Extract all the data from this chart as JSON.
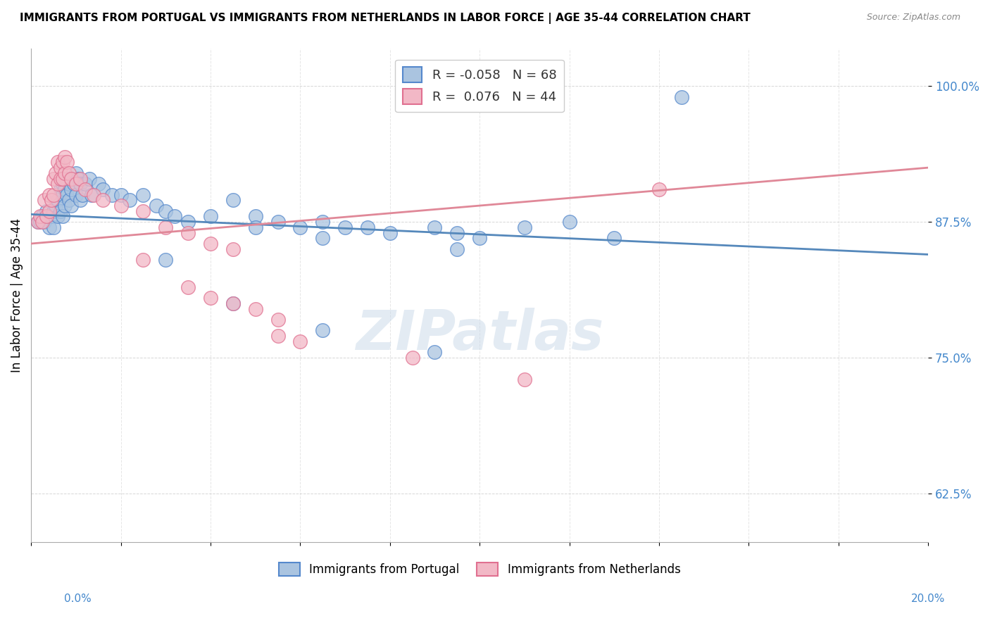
{
  "title": "IMMIGRANTS FROM PORTUGAL VS IMMIGRANTS FROM NETHERLANDS IN LABOR FORCE | AGE 35-44 CORRELATION CHART",
  "source": "Source: ZipAtlas.com",
  "ylabel": "In Labor Force | Age 35-44",
  "y_ticks": [
    62.5,
    75.0,
    87.5,
    100.0
  ],
  "y_tick_labels": [
    "62.5%",
    "75.0%",
    "87.5%",
    "100.0%"
  ],
  "xlim": [
    0.0,
    20.0
  ],
  "ylim": [
    58.0,
    103.5
  ],
  "portugal_color": "#aac4e0",
  "portugal_edge": "#5588cc",
  "netherlands_color": "#f2b8c6",
  "netherlands_edge": "#e07090",
  "portugal_line_color": "#5588bb",
  "netherlands_line_color": "#e08898",
  "legend_R_portugal": "-0.058",
  "legend_N_portugal": "68",
  "legend_R_netherlands": "0.076",
  "legend_N_netherlands": "44",
  "watermark": "ZIPatlas",
  "portugal_scatter": [
    [
      0.15,
      87.5
    ],
    [
      0.2,
      87.5
    ],
    [
      0.25,
      88.0
    ],
    [
      0.3,
      87.5
    ],
    [
      0.35,
      88.5
    ],
    [
      0.4,
      87.0
    ],
    [
      0.45,
      88.0
    ],
    [
      0.5,
      88.5
    ],
    [
      0.5,
      87.0
    ],
    [
      0.55,
      89.0
    ],
    [
      0.6,
      89.5
    ],
    [
      0.6,
      88.0
    ],
    [
      0.65,
      90.5
    ],
    [
      0.65,
      88.5
    ],
    [
      0.7,
      91.0
    ],
    [
      0.7,
      90.0
    ],
    [
      0.7,
      88.0
    ],
    [
      0.75,
      90.5
    ],
    [
      0.75,
      89.0
    ],
    [
      0.8,
      91.5
    ],
    [
      0.8,
      90.0
    ],
    [
      0.85,
      91.0
    ],
    [
      0.85,
      89.5
    ],
    [
      0.9,
      90.5
    ],
    [
      0.9,
      89.0
    ],
    [
      0.95,
      91.0
    ],
    [
      1.0,
      92.0
    ],
    [
      1.0,
      90.0
    ],
    [
      1.05,
      91.5
    ],
    [
      1.1,
      91.0
    ],
    [
      1.1,
      89.5
    ],
    [
      1.15,
      90.0
    ],
    [
      1.2,
      91.0
    ],
    [
      1.3,
      91.5
    ],
    [
      1.35,
      90.0
    ],
    [
      1.5,
      91.0
    ],
    [
      1.6,
      90.5
    ],
    [
      1.8,
      90.0
    ],
    [
      2.0,
      90.0
    ],
    [
      2.2,
      89.5
    ],
    [
      2.5,
      90.0
    ],
    [
      2.8,
      89.0
    ],
    [
      3.0,
      88.5
    ],
    [
      3.2,
      88.0
    ],
    [
      3.5,
      87.5
    ],
    [
      4.0,
      88.0
    ],
    [
      4.5,
      89.5
    ],
    [
      5.0,
      88.0
    ],
    [
      5.0,
      87.0
    ],
    [
      5.5,
      87.5
    ],
    [
      6.0,
      87.0
    ],
    [
      6.5,
      87.5
    ],
    [
      6.5,
      86.0
    ],
    [
      7.0,
      87.0
    ],
    [
      7.5,
      87.0
    ],
    [
      8.0,
      86.5
    ],
    [
      9.0,
      87.0
    ],
    [
      9.5,
      86.5
    ],
    [
      9.5,
      85.0
    ],
    [
      10.0,
      86.0
    ],
    [
      11.0,
      87.0
    ],
    [
      12.0,
      87.5
    ],
    [
      13.0,
      86.0
    ],
    [
      14.5,
      99.0
    ],
    [
      3.0,
      84.0
    ],
    [
      4.5,
      80.0
    ],
    [
      6.5,
      77.5
    ],
    [
      9.0,
      75.5
    ]
  ],
  "netherlands_scatter": [
    [
      0.15,
      87.5
    ],
    [
      0.2,
      88.0
    ],
    [
      0.25,
      87.5
    ],
    [
      0.3,
      89.5
    ],
    [
      0.35,
      88.0
    ],
    [
      0.4,
      90.0
    ],
    [
      0.4,
      88.5
    ],
    [
      0.45,
      89.5
    ],
    [
      0.5,
      91.5
    ],
    [
      0.5,
      90.0
    ],
    [
      0.55,
      92.0
    ],
    [
      0.6,
      93.0
    ],
    [
      0.6,
      91.0
    ],
    [
      0.65,
      92.5
    ],
    [
      0.65,
      91.5
    ],
    [
      0.7,
      93.0
    ],
    [
      0.7,
      91.5
    ],
    [
      0.75,
      93.5
    ],
    [
      0.75,
      92.0
    ],
    [
      0.8,
      93.0
    ],
    [
      0.85,
      92.0
    ],
    [
      0.9,
      91.5
    ],
    [
      1.0,
      91.0
    ],
    [
      1.1,
      91.5
    ],
    [
      1.2,
      90.5
    ],
    [
      1.4,
      90.0
    ],
    [
      1.6,
      89.5
    ],
    [
      2.0,
      89.0
    ],
    [
      2.5,
      88.5
    ],
    [
      3.0,
      87.0
    ],
    [
      3.5,
      86.5
    ],
    [
      4.0,
      85.5
    ],
    [
      4.5,
      85.0
    ],
    [
      3.5,
      81.5
    ],
    [
      4.0,
      80.5
    ],
    [
      4.5,
      80.0
    ],
    [
      5.0,
      79.5
    ],
    [
      5.5,
      78.5
    ],
    [
      5.5,
      77.0
    ],
    [
      6.0,
      76.5
    ],
    [
      8.5,
      75.0
    ],
    [
      11.0,
      73.0
    ],
    [
      14.0,
      90.5
    ],
    [
      2.5,
      84.0
    ]
  ]
}
